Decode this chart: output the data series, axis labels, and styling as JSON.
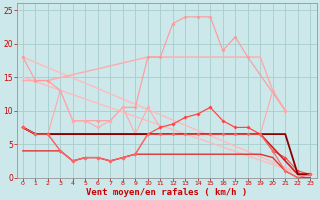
{
  "bg_color": "#cce8ea",
  "grid_color": "#a8cccc",
  "xlabel": "Vent moyen/en rafales ( km/h )",
  "xlabel_color": "#cc0000",
  "xlim": [
    -0.5,
    23.5
  ],
  "ylim": [
    0,
    26
  ],
  "yticks": [
    0,
    5,
    10,
    15,
    20,
    25
  ],
  "xticks": [
    0,
    1,
    2,
    3,
    4,
    5,
    6,
    7,
    8,
    9,
    10,
    11,
    12,
    13,
    14,
    15,
    16,
    17,
    18,
    19,
    20,
    21,
    22,
    23
  ],
  "series": [
    {
      "x": [
        0,
        23
      ],
      "y": [
        18,
        0
      ],
      "color": "#ffbbbb",
      "marker": null,
      "lw": 1.0
    },
    {
      "x": [
        0,
        23
      ],
      "y": [
        15,
        0
      ],
      "color": "#ffbbbb",
      "marker": null,
      "lw": 1.0
    },
    {
      "x": [
        0,
        1,
        2,
        10,
        11,
        18,
        19,
        20,
        21
      ],
      "y": [
        14.5,
        14.5,
        14.5,
        18,
        18,
        18,
        18,
        13,
        10
      ],
      "color": "#ffaaaa",
      "marker": null,
      "lw": 1.0
    },
    {
      "x": [
        0,
        1,
        2,
        3,
        4,
        5,
        6,
        7,
        8,
        9,
        10,
        11,
        12,
        13,
        14,
        15,
        16,
        17,
        18,
        21
      ],
      "y": [
        18,
        14.5,
        14.5,
        13,
        8.5,
        8.5,
        8.5,
        8.5,
        10.5,
        10.5,
        18,
        18,
        23,
        24,
        24,
        24,
        19,
        21,
        18,
        10
      ],
      "color": "#ff9999",
      "marker": "D",
      "markersize": 2.0,
      "lw": 0.8
    },
    {
      "x": [
        0,
        1,
        2,
        3,
        4,
        5,
        6,
        7,
        8,
        9,
        10,
        11,
        12,
        13,
        14,
        15,
        16,
        17,
        18,
        19,
        20,
        21
      ],
      "y": [
        7.5,
        6.5,
        6.5,
        13,
        8.5,
        8.5,
        7.5,
        8.5,
        10.5,
        6.5,
        10.5,
        7.5,
        8,
        9,
        9.5,
        10.5,
        8.5,
        7.5,
        7.5,
        6.5,
        13,
        10
      ],
      "color": "#ffaaaa",
      "marker": "D",
      "markersize": 2.0,
      "lw": 0.8
    },
    {
      "x": [
        0,
        1,
        2,
        3,
        4,
        5,
        6,
        7,
        8,
        9,
        10,
        11,
        12,
        13,
        14,
        15,
        16,
        17,
        18,
        19,
        20,
        21,
        22,
        23
      ],
      "y": [
        7.5,
        6.5,
        6.5,
        4,
        2.5,
        3,
        3,
        2.5,
        3,
        3.5,
        6.5,
        7.5,
        8,
        9,
        9.5,
        10.5,
        8.5,
        7.5,
        7.5,
        6.5,
        4,
        3,
        1,
        0.5
      ],
      "color": "#ff4444",
      "marker": "D",
      "markersize": 2.0,
      "lw": 0.8
    },
    {
      "x": [
        0,
        1,
        2,
        10,
        19,
        22,
        23
      ],
      "y": [
        7.5,
        6.5,
        6.5,
        6.5,
        6.5,
        0.5,
        0.5
      ],
      "color": "#cc2222",
      "marker": null,
      "lw": 1.2
    },
    {
      "x": [
        0,
        1,
        21,
        22,
        23
      ],
      "y": [
        7.5,
        6.5,
        6.5,
        0.5,
        0.5
      ],
      "color": "#880000",
      "marker": null,
      "lw": 1.3
    },
    {
      "x": [
        0,
        3,
        4,
        5,
        6,
        7,
        8,
        9,
        19,
        20,
        21,
        22,
        23
      ],
      "y": [
        4,
        4,
        2.5,
        3,
        3,
        2.5,
        3,
        3.5,
        3.5,
        3,
        1,
        0,
        0
      ],
      "color": "#dd3333",
      "marker": null,
      "lw": 1.0
    },
    {
      "x": [
        0,
        1,
        2,
        3,
        4,
        5,
        6,
        7,
        8,
        9,
        10,
        11,
        12,
        13,
        14,
        15,
        16,
        17,
        18,
        19,
        20,
        21,
        22,
        23
      ],
      "y": [
        7.5,
        6.5,
        6.5,
        4,
        2.5,
        3,
        3,
        2.5,
        3,
        3.5,
        6.5,
        6.5,
        6.5,
        6.5,
        6.5,
        6.5,
        6.5,
        6.5,
        6.5,
        6.5,
        4,
        1,
        0,
        0.5
      ],
      "color": "#ff6666",
      "marker": "D",
      "markersize": 2.0,
      "lw": 0.8
    }
  ]
}
